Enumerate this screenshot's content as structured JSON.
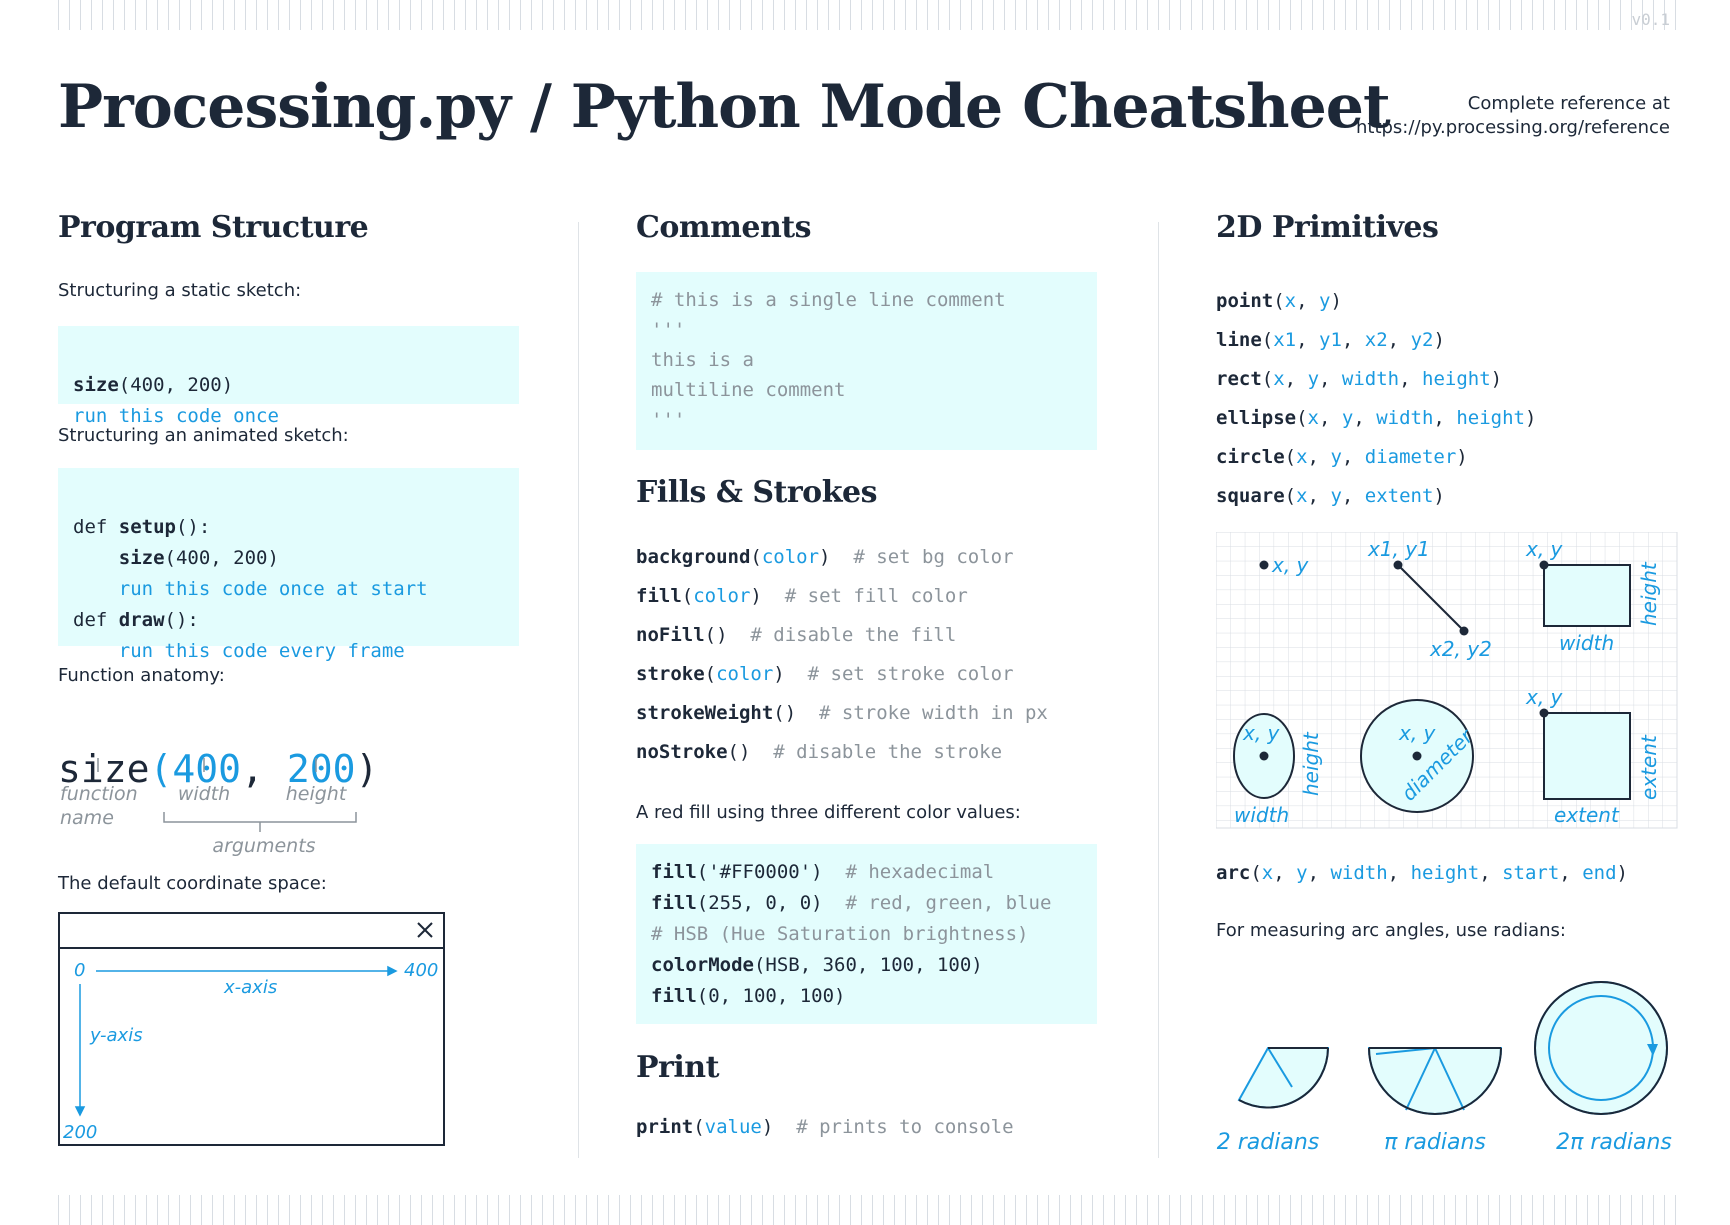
{
  "version": "v0.1",
  "title": "Processing.py / Python Mode Cheatsheet",
  "reference": {
    "line1": "Complete reference at",
    "line2": "https://py.processing.org/reference"
  },
  "program_structure": {
    "heading": "Program Structure",
    "static_label": "Structuring a static sketch:",
    "static_fn": "size",
    "static_args": "(400, 200)",
    "static_comment": "run this code once",
    "animated_label": "Structuring an animated sketch:",
    "def1_kw": "def ",
    "def1_fn": "setup",
    "def1_rest": "():",
    "size_fn": "size",
    "size_args": "(400, 200)",
    "start_comment": "run this code once at start",
    "def2_kw": "def ",
    "def2_fn": "draw",
    "def2_rest": "():",
    "frame_comment": "run this code every frame",
    "anatomy_label": "Function anatomy:",
    "anatomy_fn": "size",
    "anatomy_open": "(",
    "anatomy_arg1": "400",
    "anatomy_sep": ", ",
    "anatomy_arg2": "200",
    "anatomy_close": ")",
    "anatomy_fn_label1": "function",
    "anatomy_fn_label2": "name",
    "anatomy_width": "width",
    "anatomy_height": "height",
    "anatomy_arguments": "arguments",
    "coord_label": "The default coordinate space:",
    "coord_origin": "0",
    "coord_xmax": "400",
    "coord_ymax": "200",
    "coord_xaxis": "x-axis",
    "coord_yaxis": "y-axis"
  },
  "comments": {
    "heading": "Comments",
    "lines": [
      "# this is a single line comment",
      "'''",
      "this is a",
      "multiline comment",
      "'''"
    ]
  },
  "fills": {
    "heading": "Fills & Strokes",
    "items": [
      {
        "fn": "background",
        "arg": "color",
        "comment": "# set bg color"
      },
      {
        "fn": "fill",
        "arg": "color",
        "comment": "# set fill color"
      },
      {
        "fn": "noFill",
        "arg": "",
        "comment": "# disable the fill"
      },
      {
        "fn": "stroke",
        "arg": "color",
        "comment": "# set stroke color"
      },
      {
        "fn": "strokeWeight",
        "arg": "",
        "comment": "# stroke width in px"
      },
      {
        "fn": "noStroke",
        "arg": "",
        "comment": "# disable the stroke"
      }
    ],
    "red_label": "A red fill using three different color values:",
    "red": [
      {
        "fn": "fill",
        "args": "('#FF0000')",
        "comment": "  # hexadecimal"
      },
      {
        "fn": "fill",
        "args": "(255, 0, 0)",
        "comment": "  # red, green, blue"
      },
      {
        "fn": "",
        "args": "",
        "comment": "# HSB (Hue Saturation brightness)"
      },
      {
        "fn": "colorMode",
        "args": "(HSB, 360, 100, 100)",
        "comment": ""
      },
      {
        "fn": "fill",
        "args": "(0, 100, 100)",
        "comment": ""
      }
    ]
  },
  "print": {
    "heading": "Print",
    "fn": "print",
    "arg": "value",
    "comment": "# prints to console"
  },
  "primitives": {
    "heading": "2D Primitives",
    "items": [
      {
        "fn": "point",
        "args": [
          "x",
          "y"
        ]
      },
      {
        "fn": "line",
        "args": [
          "x1",
          "y1",
          "x2",
          "y2"
        ]
      },
      {
        "fn": "rect",
        "args": [
          "x",
          "y",
          "width",
          "height"
        ]
      },
      {
        "fn": "ellipse",
        "args": [
          "x",
          "y",
          "width",
          "height"
        ]
      },
      {
        "fn": "circle",
        "args": [
          "x",
          "y",
          "diameter"
        ]
      },
      {
        "fn": "square",
        "args": [
          "x",
          "y",
          "extent"
        ]
      }
    ],
    "diagram": {
      "point_xy": "x, y",
      "line_start": "x1, y1",
      "line_end": "x2, y2",
      "rect_xy": "x, y",
      "rect_w": "width",
      "rect_h": "height",
      "ellipse_xy": "x, y",
      "ellipse_w": "width",
      "ellipse_h": "height",
      "circle_xy": "x, y",
      "circle_d": "diameter",
      "square_xy": "x, y",
      "square_w": "extent",
      "square_h": "extent"
    },
    "arc": {
      "fn": "arc",
      "args": [
        "x",
        "y",
        "width",
        "height",
        "start",
        "end"
      ]
    },
    "radians_label": "For measuring arc angles, use radians:",
    "radians": [
      "2 radians",
      "π radians",
      "2π radians"
    ]
  },
  "colors": {
    "ink": "#1d2838",
    "accent": "#1a9ae0",
    "comment": "#8c949b",
    "codebg": "#e3fdfd"
  }
}
